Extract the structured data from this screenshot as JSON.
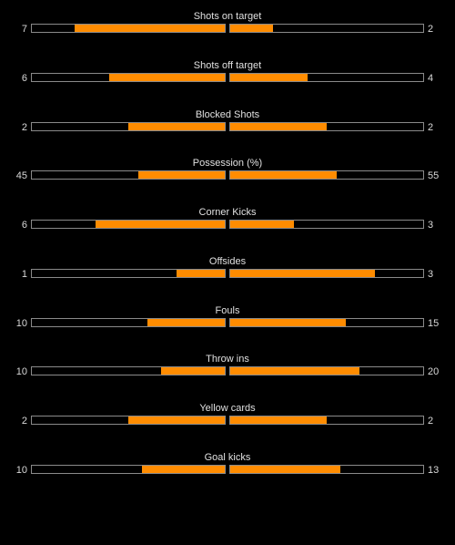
{
  "colors": {
    "background": "#000000",
    "bar_fill": "#ff8c00",
    "bar_border": "#8a8a8a",
    "text": "#d9d9d9"
  },
  "stats": [
    {
      "label": "Shots on target",
      "home": "7",
      "away": "2",
      "home_fill": 0.78,
      "away_fill": 0.22
    },
    {
      "label": "Shots off target",
      "home": "6",
      "away": "4",
      "home_fill": 0.6,
      "away_fill": 0.4
    },
    {
      "label": "Blocked Shots",
      "home": "2",
      "away": "2",
      "home_fill": 0.5,
      "away_fill": 0.5
    },
    {
      "label": "Possession (%)",
      "home": "45",
      "away": "55",
      "home_fill": 0.45,
      "away_fill": 0.55
    },
    {
      "label": "Corner Kicks",
      "home": "6",
      "away": "3",
      "home_fill": 0.67,
      "away_fill": 0.33
    },
    {
      "label": "Offsides",
      "home": "1",
      "away": "3",
      "home_fill": 0.25,
      "away_fill": 0.75
    },
    {
      "label": "Fouls",
      "home": "10",
      "away": "15",
      "home_fill": 0.4,
      "away_fill": 0.6
    },
    {
      "label": "Throw ins",
      "home": "10",
      "away": "20",
      "home_fill": 0.33,
      "away_fill": 0.67
    },
    {
      "label": "Yellow cards",
      "home": "2",
      "away": "2",
      "home_fill": 0.5,
      "away_fill": 0.5
    },
    {
      "label": "Goal kicks",
      "home": "10",
      "away": "13",
      "home_fill": 0.43,
      "away_fill": 0.57
    }
  ]
}
